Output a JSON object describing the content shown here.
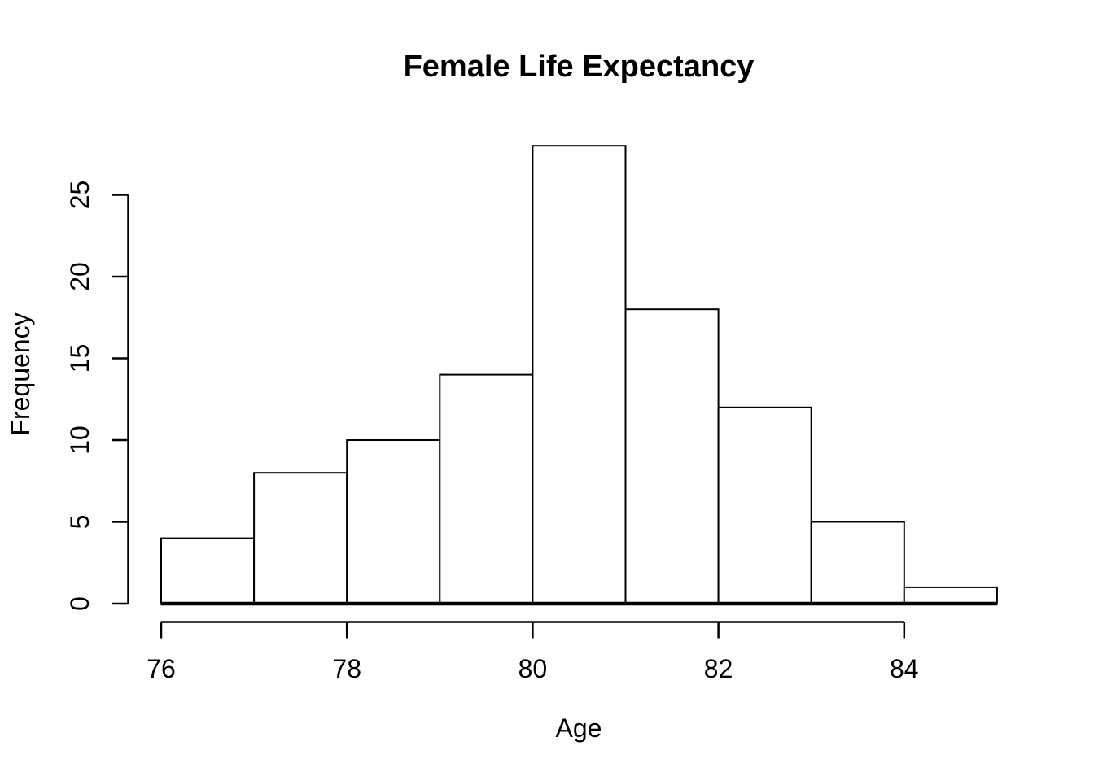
{
  "chart_data": {
    "type": "bar",
    "subtype": "histogram",
    "title": "Female Life Expectancy",
    "xlabel": "Age",
    "ylabel": "Frequency",
    "bin_edges": [
      76,
      77,
      78,
      79,
      80,
      81,
      82,
      83,
      84,
      85
    ],
    "categories": [
      "76-77",
      "77-78",
      "78-79",
      "79-80",
      "80-81",
      "81-82",
      "82-83",
      "83-84",
      "84-85"
    ],
    "values": [
      4,
      8,
      10,
      14,
      28,
      18,
      12,
      5,
      1
    ],
    "xticks": [
      76,
      78,
      80,
      82,
      84
    ],
    "yticks": [
      0,
      5,
      10,
      15,
      20,
      25
    ],
    "xlim": [
      76,
      85
    ],
    "yaxis_range": [
      0,
      25
    ],
    "grid": false,
    "legend": false,
    "colors": {
      "bar_fill": "#ffffff",
      "bar_stroke": "#000000",
      "axis": "#000000",
      "text": "#000000",
      "background": "#ffffff"
    }
  }
}
